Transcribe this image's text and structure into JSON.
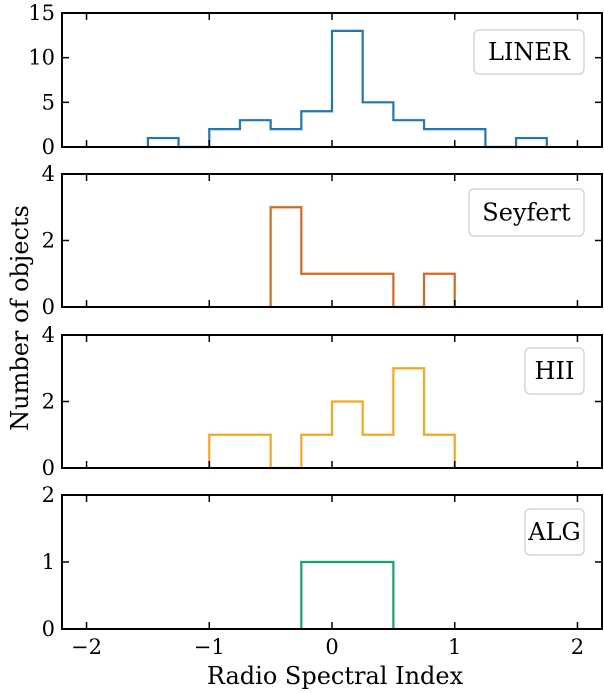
{
  "figure": {
    "xlabel": "Radio Spectral Index",
    "ylabel": "Number of objects"
  },
  "chart_data": [
    {
      "type": "histogram",
      "legend": "LINER",
      "legend_position": "top-right",
      "color": "#1f77b4",
      "xlim": [
        -2.2,
        2.2
      ],
      "ylim": [
        0,
        15
      ],
      "yticks": [
        0,
        5,
        10,
        15
      ],
      "xticks": [
        -2,
        -1,
        0,
        1,
        2
      ],
      "bins": [
        {
          "x0": -1.5,
          "x1": -1.25,
          "count": 1
        },
        {
          "x0": -1.25,
          "x1": -1.0,
          "count": 0
        },
        {
          "x0": -1.0,
          "x1": -0.75,
          "count": 2
        },
        {
          "x0": -0.75,
          "x1": -0.5,
          "count": 3
        },
        {
          "x0": -0.5,
          "x1": -0.25,
          "count": 2
        },
        {
          "x0": -0.25,
          "x1": 0.0,
          "count": 4
        },
        {
          "x0": 0.0,
          "x1": 0.25,
          "count": 13
        },
        {
          "x0": 0.25,
          "x1": 0.5,
          "count": 5
        },
        {
          "x0": 0.5,
          "x1": 0.75,
          "count": 3
        },
        {
          "x0": 0.75,
          "x1": 1.0,
          "count": 2
        },
        {
          "x0": 1.0,
          "x1": 1.25,
          "count": 2
        },
        {
          "x0": 1.25,
          "x1": 1.5,
          "count": 0
        },
        {
          "x0": 1.5,
          "x1": 1.75,
          "count": 1
        }
      ]
    },
    {
      "type": "histogram",
      "legend": "Seyfert",
      "legend_position": "top-right",
      "color": "#d2691e",
      "xlim": [
        -2.2,
        2.2
      ],
      "ylim": [
        0,
        4
      ],
      "yticks": [
        0,
        2,
        4
      ],
      "xticks": [
        -2,
        -1,
        0,
        1,
        2
      ],
      "bins": [
        {
          "x0": -0.5,
          "x1": -0.25,
          "count": 3
        },
        {
          "x0": -0.25,
          "x1": 0.0,
          "count": 1
        },
        {
          "x0": 0.0,
          "x1": 0.25,
          "count": 1
        },
        {
          "x0": 0.25,
          "x1": 0.5,
          "count": 1
        },
        {
          "x0": 0.5,
          "x1": 0.75,
          "count": 0
        },
        {
          "x0": 0.75,
          "x1": 1.0,
          "count": 1
        }
      ]
    },
    {
      "type": "histogram",
      "legend": "HII",
      "legend_position": "top-right",
      "color": "#f5a623",
      "xlim": [
        -2.2,
        2.2
      ],
      "ylim": [
        0,
        4
      ],
      "yticks": [
        0,
        2,
        4
      ],
      "xticks": [
        -2,
        -1,
        0,
        1,
        2
      ],
      "bins": [
        {
          "x0": -1.0,
          "x1": -0.75,
          "count": 1
        },
        {
          "x0": -0.75,
          "x1": -0.5,
          "count": 1
        },
        {
          "x0": -0.5,
          "x1": -0.25,
          "count": 0
        },
        {
          "x0": -0.25,
          "x1": 0.0,
          "count": 1
        },
        {
          "x0": 0.0,
          "x1": 0.25,
          "count": 2
        },
        {
          "x0": 0.25,
          "x1": 0.5,
          "count": 1
        },
        {
          "x0": 0.5,
          "x1": 0.75,
          "count": 3
        },
        {
          "x0": 0.75,
          "x1": 1.0,
          "count": 1
        }
      ]
    },
    {
      "type": "histogram",
      "legend": "ALG",
      "legend_position": "top-right",
      "color": "#1a9e77",
      "xlim": [
        -2.2,
        2.2
      ],
      "ylim": [
        0,
        2
      ],
      "yticks": [
        0,
        1,
        2
      ],
      "xticks": [
        -2,
        -1,
        0,
        1,
        2
      ],
      "xticklabels": [
        "−2",
        "−1",
        "0",
        "1",
        "2"
      ],
      "bins": [
        {
          "x0": -0.25,
          "x1": 0.0,
          "count": 1
        },
        {
          "x0": 0.0,
          "x1": 0.25,
          "count": 1
        },
        {
          "x0": 0.25,
          "x1": 0.5,
          "count": 1
        }
      ]
    }
  ]
}
